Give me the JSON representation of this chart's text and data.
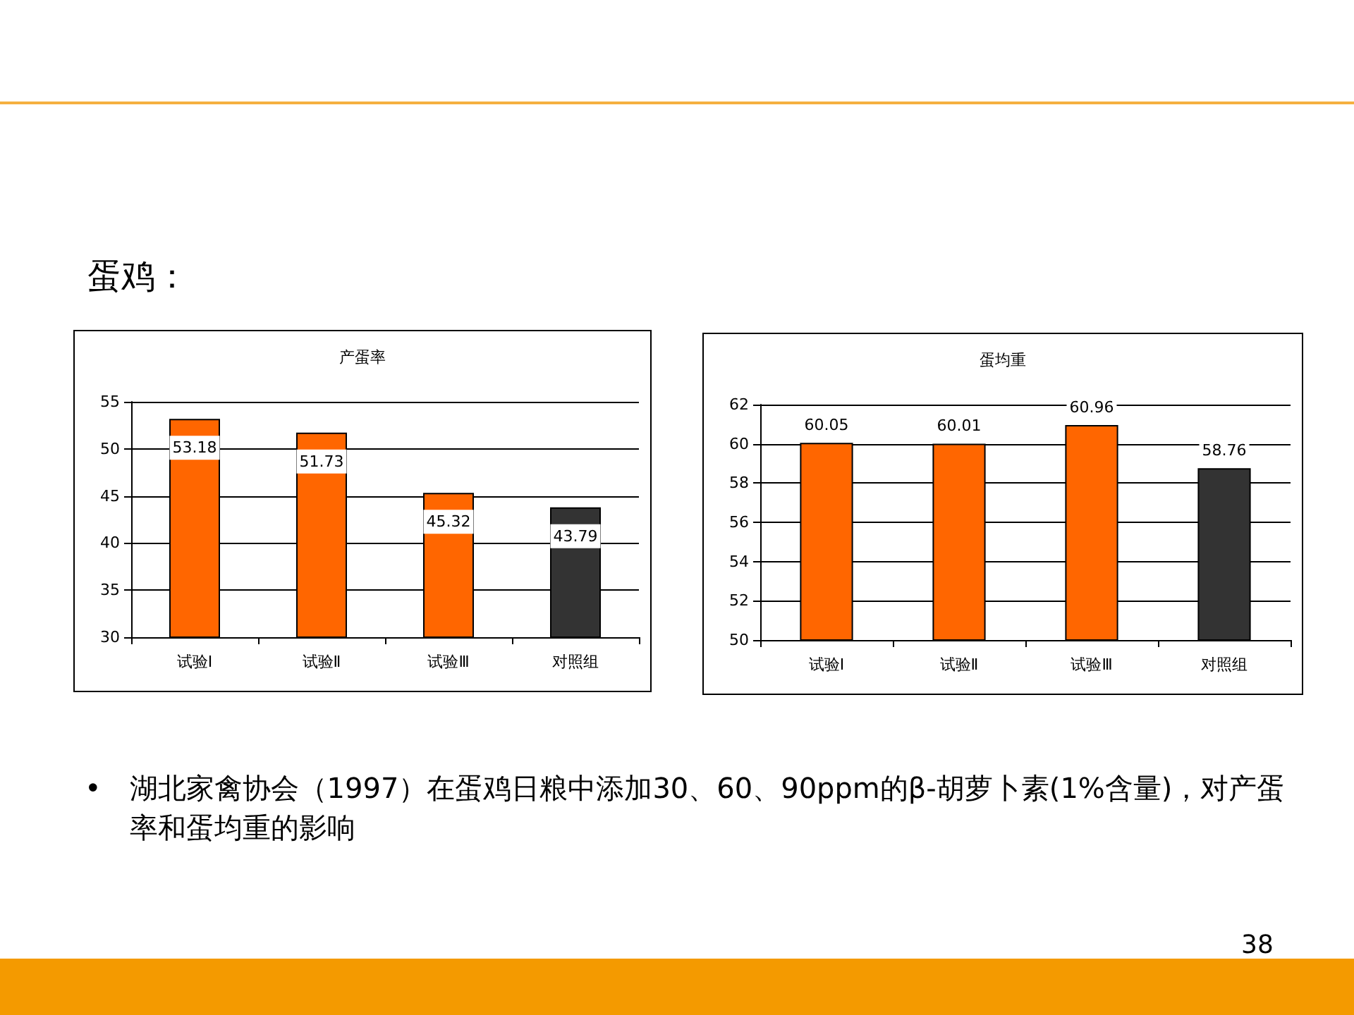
{
  "chart_data": [
    {
      "type": "bar",
      "title": "产蛋率",
      "categories": [
        "试验Ⅰ",
        "试验Ⅱ",
        "试验Ⅲ",
        "对照组"
      ],
      "values": [
        53.18,
        51.73,
        45.32,
        43.79
      ],
      "colors": [
        "#ff6600",
        "#ff6600",
        "#ff6600",
        "#333333"
      ],
      "ylim": [
        30,
        55
      ],
      "yticks": [
        30,
        35,
        40,
        45,
        50,
        55
      ],
      "grid": "y",
      "data_labels": true,
      "annotations": [
        "蛋鸡：",
        "•　湖北家禽协会（1997）在蛋鸡日粮中添加30、60、90ppm的β-胡萝卜素(1%含量)，对产蛋率和蛋均重的影响",
        "38"
      ]
    },
    {
      "type": "bar",
      "title": "蛋均重",
      "categories": [
        "试验Ⅰ",
        "试验Ⅱ",
        "试验Ⅲ",
        "对照组"
      ],
      "values": [
        60.05,
        60.01,
        60.96,
        58.76
      ],
      "colors": [
        "#ff6600",
        "#ff6600",
        "#ff6600",
        "#333333"
      ],
      "ylim": [
        50,
        62
      ],
      "yticks": [
        50,
        52,
        54,
        56,
        58,
        60,
        62
      ],
      "grid": "y",
      "data_labels": true
    }
  ]
}
